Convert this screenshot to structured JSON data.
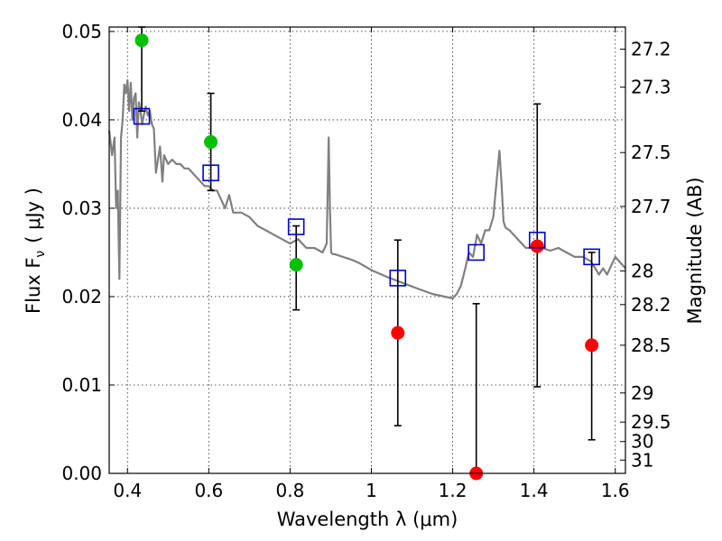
{
  "chart_data": {
    "type": "scatter",
    "xlabel": "Wavelength  λ (μm)",
    "ylabel": "Flux  F",
    "ylabel_sub": "ν",
    "ylabel_unit": "( μJy )",
    "y2label": "Magnitude (AB)",
    "xlim": [
      0.355,
      1.625
    ],
    "ylim": [
      0.0,
      0.0505
    ],
    "grid": true,
    "x_ticks": [
      0.4,
      0.6,
      0.8,
      1.0,
      1.2,
      1.4,
      1.6
    ],
    "x_tick_labels": [
      "0.4",
      "0.6",
      "0.8",
      "1",
      "1.2",
      "1.4",
      "1.6"
    ],
    "y_ticks": [
      0.0,
      0.01,
      0.02,
      0.03,
      0.04,
      0.05
    ],
    "y_tick_labels": [
      "0.00",
      "0.01",
      "0.02",
      "0.03",
      "0.04",
      "0.05"
    ],
    "mag_ticks": [
      {
        "label": "27.2",
        "flux": 0.048
      },
      {
        "label": "27.3",
        "flux": 0.0437
      },
      {
        "label": "27.5",
        "flux": 0.0363
      },
      {
        "label": "27.7",
        "flux": 0.0302
      },
      {
        "label": "28",
        "flux": 0.0229
      },
      {
        "label": "28.2",
        "flux": 0.0191
      },
      {
        "label": "28.5",
        "flux": 0.0145
      },
      {
        "label": "29",
        "flux": 0.0091
      },
      {
        "label": "29.5",
        "flux": 0.0058
      },
      {
        "label": "30",
        "flux": 0.0036
      },
      {
        "label": "31",
        "flux": 0.0015
      }
    ],
    "colors": {
      "model": "#808080",
      "detection": "#00c000",
      "nondetection": "#ff0000",
      "model_photometry": "#0000cc",
      "errorbar": "#000000"
    },
    "model_spectrum": {
      "x": [
        0.355,
        0.362,
        0.368,
        0.372,
        0.376,
        0.38,
        0.384,
        0.388,
        0.392,
        0.396,
        0.4,
        0.404,
        0.408,
        0.412,
        0.416,
        0.42,
        0.424,
        0.428,
        0.432,
        0.436,
        0.44,
        0.445,
        0.45,
        0.455,
        0.46,
        0.465,
        0.47,
        0.48,
        0.486,
        0.49,
        0.5,
        0.51,
        0.52,
        0.53,
        0.54,
        0.55,
        0.56,
        0.57,
        0.58,
        0.59,
        0.6,
        0.61,
        0.62,
        0.63,
        0.64,
        0.65,
        0.66,
        0.68,
        0.7,
        0.72,
        0.74,
        0.76,
        0.78,
        0.8,
        0.82,
        0.84,
        0.86,
        0.88,
        0.89,
        0.895,
        0.898,
        0.901,
        0.905,
        0.91,
        0.93,
        0.95,
        0.97,
        1.0,
        1.04,
        1.08,
        1.12,
        1.15,
        1.18,
        1.2,
        1.21,
        1.22,
        1.23,
        1.24,
        1.25,
        1.26,
        1.27,
        1.28,
        1.29,
        1.3,
        1.31,
        1.315,
        1.32,
        1.325,
        1.33,
        1.34,
        1.36,
        1.38,
        1.4,
        1.42,
        1.44,
        1.46,
        1.48,
        1.5,
        1.52,
        1.54,
        1.56,
        1.57,
        1.58,
        1.6,
        1.625
      ],
      "y": [
        0.0388,
        0.036,
        0.038,
        0.03,
        0.032,
        0.022,
        0.038,
        0.04,
        0.044,
        0.043,
        0.0445,
        0.041,
        0.0442,
        0.04,
        0.0425,
        0.043,
        0.038,
        0.042,
        0.041,
        0.0395,
        0.0405,
        0.0415,
        0.0405,
        0.041,
        0.0395,
        0.039,
        0.034,
        0.037,
        0.033,
        0.036,
        0.035,
        0.0355,
        0.035,
        0.035,
        0.0345,
        0.0345,
        0.034,
        0.0335,
        0.033,
        0.0325,
        0.0325,
        0.032,
        0.032,
        0.031,
        0.03,
        0.0315,
        0.0295,
        0.0295,
        0.029,
        0.028,
        0.0275,
        0.027,
        0.0265,
        0.026,
        0.0265,
        0.0255,
        0.0255,
        0.025,
        0.026,
        0.038,
        0.03,
        0.025,
        0.0248,
        0.0248,
        0.0245,
        0.0242,
        0.0238,
        0.023,
        0.0222,
        0.0215,
        0.0208,
        0.0203,
        0.02,
        0.0198,
        0.0203,
        0.0212,
        0.023,
        0.025,
        0.0245,
        0.027,
        0.026,
        0.0275,
        0.0275,
        0.029,
        0.034,
        0.0365,
        0.033,
        0.0285,
        0.0278,
        0.0275,
        0.0265,
        0.0255,
        0.0255,
        0.0255,
        0.0252,
        0.0255,
        0.025,
        0.0245,
        0.0245,
        0.024,
        0.0225,
        0.0232,
        0.0225,
        0.0245,
        0.0232
      ]
    },
    "series": [
      {
        "marker": "circle",
        "color": "#00c000",
        "x": [
          0.435,
          0.605,
          0.815
        ],
        "y": [
          0.049,
          0.0375,
          0.0236
        ],
        "yerr_low": [
          0.041,
          0.032,
          0.0185
        ],
        "yerr_high": [
          0.0505,
          0.043,
          0.028
        ]
      },
      {
        "marker": "circle",
        "color": "#ff0000",
        "x": [
          1.065,
          1.258,
          1.408,
          1.542
        ],
        "y": [
          0.0159,
          0.0,
          0.0257,
          0.0145
        ],
        "yerr_low": [
          0.0054,
          0.0,
          0.0098,
          0.0038
        ],
        "yerr_high": [
          0.0264,
          0.0192,
          0.0418,
          0.025
        ]
      },
      {
        "marker": "square",
        "color": "#0000cc",
        "x": [
          0.435,
          0.605,
          0.815,
          1.065,
          1.258,
          1.408,
          1.542
        ],
        "y": [
          0.0404,
          0.034,
          0.0279,
          0.0221,
          0.025,
          0.0264,
          0.0245
        ]
      }
    ]
  }
}
